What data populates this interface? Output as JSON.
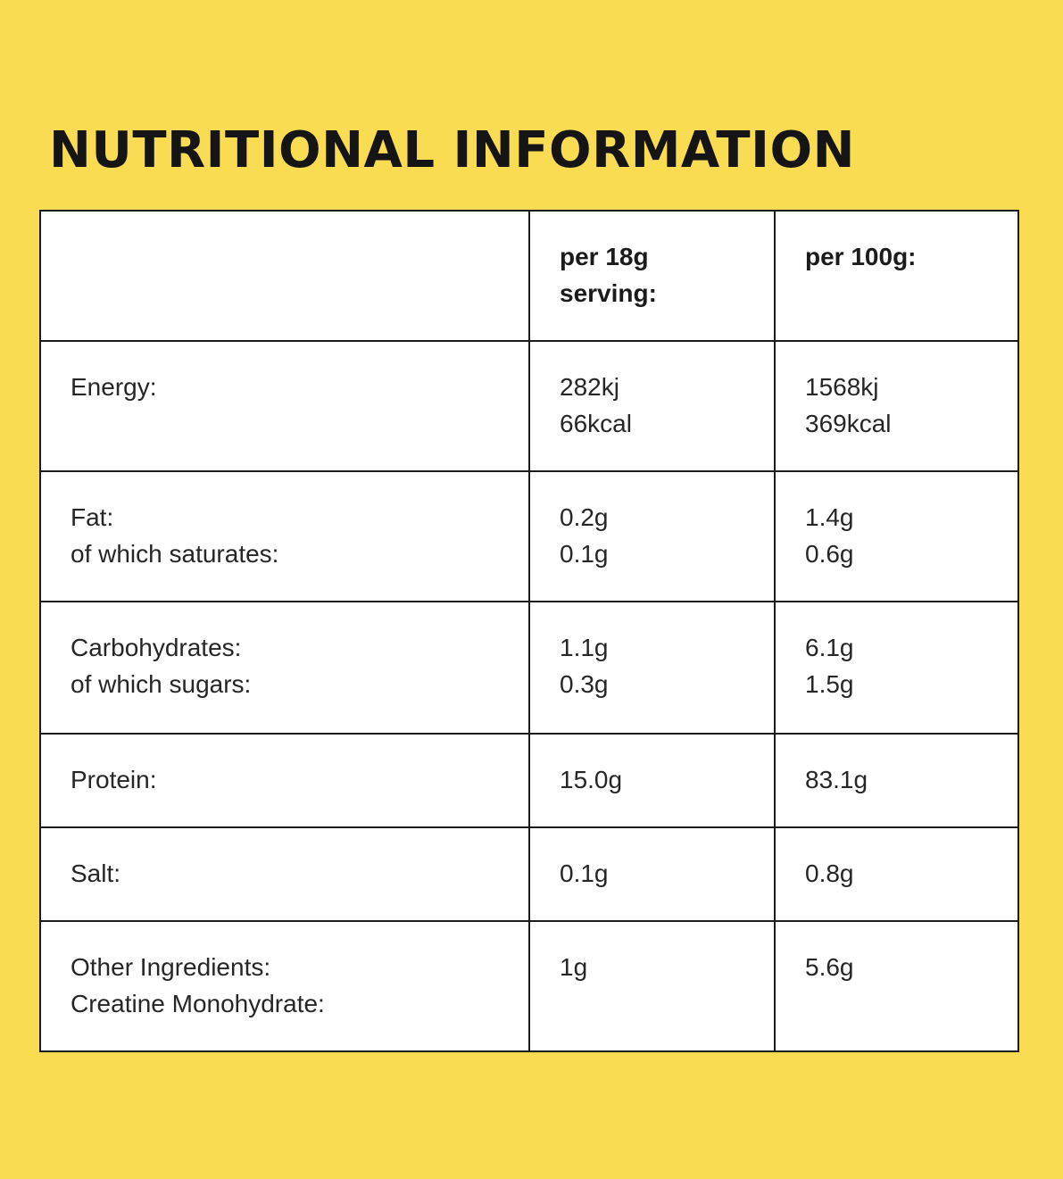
{
  "title": "NUTRITIONAL INFORMATION",
  "colors": {
    "background": "#F9DC52",
    "title_text": "#151515",
    "body_text": "#262626",
    "table_background": "#FFFFFF",
    "table_border": "#1B1B1B"
  },
  "table": {
    "header": {
      "label": "",
      "per_serving_line1": "per 18g",
      "per_serving_line2": "serving:",
      "per_100g": "per 100g:"
    },
    "rows": [
      {
        "label1": "Energy:",
        "serving1": "282kj",
        "serving2": "66kcal",
        "per100g1": "1568kj",
        "per100g2": "369kcal"
      },
      {
        "label1": "Fat:",
        "label2": "of which saturates:",
        "serving1": "0.2g",
        "serving2": "0.1g",
        "per100g1": "1.4g",
        "per100g2": "0.6g"
      },
      {
        "label1": "Carbohydrates:",
        "label2": "of which sugars:",
        "serving1": "1.1g",
        "serving2": "0.3g",
        "per100g1": "6.1g",
        "per100g2": "1.5g"
      },
      {
        "label1": "Protein:",
        "serving1": "15.0g",
        "per100g1": "83.1g"
      },
      {
        "label1": "Salt:",
        "serving1": "0.1g",
        "per100g1": "0.8g"
      },
      {
        "label1": "Other Ingredients:",
        "label2": "Creatine Monohydrate:",
        "serving1": "1g",
        "per100g1": "5.6g"
      }
    ]
  }
}
